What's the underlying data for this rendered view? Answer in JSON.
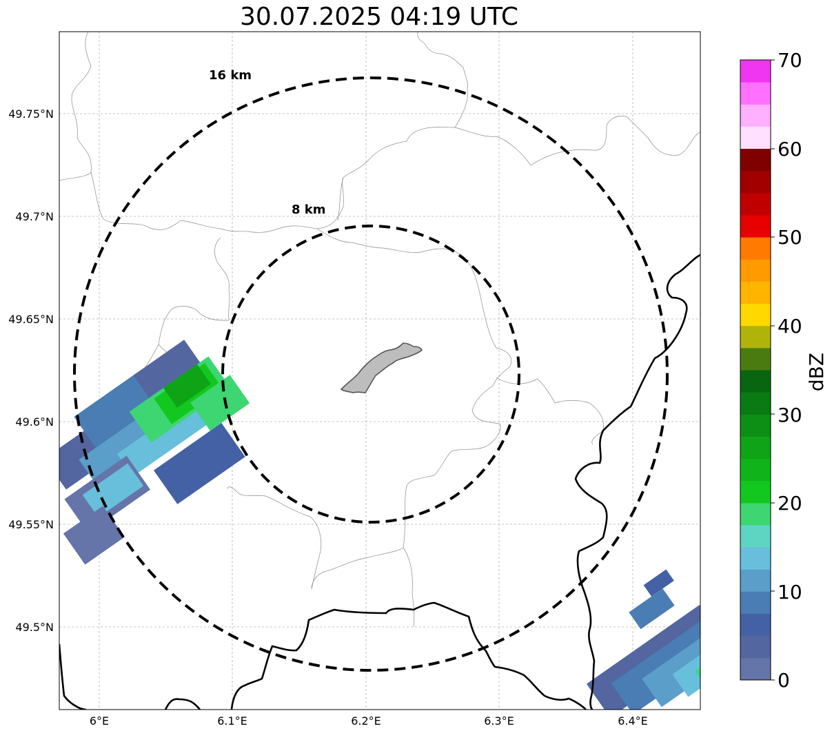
{
  "title": "30.07.2025 04:19 UTC",
  "map": {
    "lat_ticks": [
      "49.75°N",
      "49.7°N",
      "49.65°N",
      "49.6°N",
      "49.55°N",
      "49.5°N"
    ],
    "lon_ticks": [
      "6°E",
      "6.1°E",
      "6.2°E",
      "6.3°E",
      "6.4°E"
    ],
    "rings": [
      {
        "label": "16 km",
        "radius_km": 16
      },
      {
        "label": "8 km",
        "radius_km": 8
      }
    ],
    "center": {
      "lat": 49.623,
      "lon": 6.2
    }
  },
  "colorbar": {
    "label": "dBZ",
    "ticks": [
      "0",
      "10",
      "20",
      "30",
      "40",
      "50",
      "60",
      "70"
    ],
    "colors": [
      "#6574a9",
      "#5466a0",
      "#4461a5",
      "#4a7db3",
      "#5a9ec9",
      "#67bfdc",
      "#5ed5c3",
      "#3dd672",
      "#12c81e",
      "#10b41a",
      "#0ea416",
      "#0c8f14",
      "#0a7a12",
      "#086610",
      "#4a7b10",
      "#b0b40a",
      "#ffd800",
      "#ffb400",
      "#ff9a00",
      "#ff7a00",
      "#e60000",
      "#c00000",
      "#a00000",
      "#800000",
      "#ffe0ff",
      "#ffb0ff",
      "#ff70ff",
      "#f036f0"
    ]
  }
}
